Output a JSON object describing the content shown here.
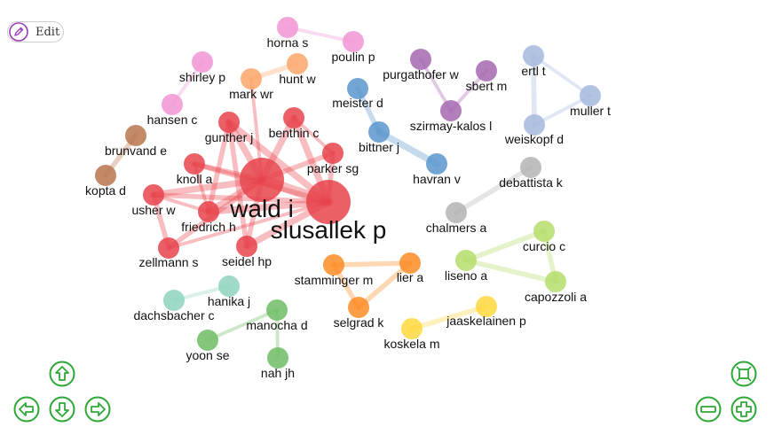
{
  "toolbar": {
    "edit_label": "Edit"
  },
  "icons": {
    "edit": "pencil-icon",
    "up": "arrow-up-icon",
    "down": "arrow-down-icon",
    "left": "arrow-left-icon",
    "right": "arrow-right-icon",
    "zoom_in": "zoom-in-icon",
    "zoom_out": "zoom-out-icon",
    "fit": "fit-to-screen-icon"
  },
  "colors": {
    "red": "#e8434b",
    "pink": "#f195d5",
    "salmon": "#fba66a",
    "brown": "#b9764e",
    "blue": "#5b97cc",
    "purple": "#a568b0",
    "lavender": "#a5b8dd",
    "gray": "#b4b4b4",
    "orange": "#fd8c24",
    "lime": "#b5dd6a",
    "yellow": "#ffd83c",
    "teal": "#8ed3bf",
    "green": "#6fbd65",
    "nav": "#2ea837"
  },
  "network": {
    "nodes": [
      {
        "id": "wald",
        "label": "wald i",
        "color": "red",
        "weight": 5
      },
      {
        "id": "slusallek",
        "label": "slusallek p",
        "color": "red",
        "weight": 5
      },
      {
        "id": "gunther",
        "label": "gunther j",
        "color": "red",
        "weight": 1
      },
      {
        "id": "benthin",
        "label": "benthin c",
        "color": "red",
        "weight": 1
      },
      {
        "id": "parker",
        "label": "parker sg",
        "color": "red",
        "weight": 1
      },
      {
        "id": "knoll",
        "label": "knoll a",
        "color": "red",
        "weight": 1
      },
      {
        "id": "usher",
        "label": "usher w",
        "color": "red",
        "weight": 1
      },
      {
        "id": "friedrich",
        "label": "friedrich h",
        "color": "red",
        "weight": 1
      },
      {
        "id": "zellmann",
        "label": "zellmann s",
        "color": "red",
        "weight": 1
      },
      {
        "id": "seidel",
        "label": "seidel hp",
        "color": "red",
        "weight": 1
      },
      {
        "id": "horna",
        "label": "horna s",
        "color": "pink",
        "weight": 1
      },
      {
        "id": "poulin",
        "label": "poulin p",
        "color": "pink",
        "weight": 1
      },
      {
        "id": "shirley",
        "label": "shirley p",
        "color": "pink",
        "weight": 1
      },
      {
        "id": "hansen",
        "label": "hansen c",
        "color": "pink",
        "weight": 1
      },
      {
        "id": "hunt",
        "label": "hunt w",
        "color": "salmon",
        "weight": 1
      },
      {
        "id": "markwr",
        "label": "mark wr",
        "color": "salmon",
        "weight": 1
      },
      {
        "id": "brunvand",
        "label": "brunvand e",
        "color": "brown",
        "weight": 1
      },
      {
        "id": "kopta",
        "label": "kopta d",
        "color": "brown",
        "weight": 1
      },
      {
        "id": "meister",
        "label": "meister d",
        "color": "blue",
        "weight": 1
      },
      {
        "id": "bittner",
        "label": "bittner j",
        "color": "blue",
        "weight": 1
      },
      {
        "id": "havran",
        "label": "havran v",
        "color": "blue",
        "weight": 1
      },
      {
        "id": "purgathofer",
        "label": "purgathofer w",
        "color": "purple",
        "weight": 1
      },
      {
        "id": "sbert",
        "label": "sbert m",
        "color": "purple",
        "weight": 1
      },
      {
        "id": "szirmay",
        "label": "szirmay-kalos l",
        "color": "purple",
        "weight": 1
      },
      {
        "id": "ertl",
        "label": "ertl t",
        "color": "lavender",
        "weight": 1
      },
      {
        "id": "muller",
        "label": "muller t",
        "color": "lavender",
        "weight": 1
      },
      {
        "id": "weiskopf",
        "label": "weiskopf d",
        "color": "lavender",
        "weight": 1
      },
      {
        "id": "debattista",
        "label": "debattista k",
        "color": "gray",
        "weight": 1
      },
      {
        "id": "chalmers",
        "label": "chalmers a",
        "color": "gray",
        "weight": 1
      },
      {
        "id": "stamminger",
        "label": "stamminger m",
        "color": "orange",
        "weight": 1
      },
      {
        "id": "lier",
        "label": "lier a",
        "color": "orange",
        "weight": 1
      },
      {
        "id": "selgrad",
        "label": "selgrad k",
        "color": "orange",
        "weight": 1
      },
      {
        "id": "curcio",
        "label": "curcio c",
        "color": "lime",
        "weight": 1
      },
      {
        "id": "liseno",
        "label": "liseno a",
        "color": "lime",
        "weight": 1
      },
      {
        "id": "capozzoli",
        "label": "capozzoli a",
        "color": "lime",
        "weight": 1
      },
      {
        "id": "jaaskelainen",
        "label": "jaaskelainen p",
        "color": "yellow",
        "weight": 1
      },
      {
        "id": "koskela",
        "label": "koskela m",
        "color": "yellow",
        "weight": 1
      },
      {
        "id": "hanika",
        "label": "hanika j",
        "color": "teal",
        "weight": 1
      },
      {
        "id": "dachsbacher",
        "label": "dachsbacher c",
        "color": "teal",
        "weight": 1
      },
      {
        "id": "manocha",
        "label": "manocha d",
        "color": "green",
        "weight": 1
      },
      {
        "id": "yoon",
        "label": "yoon se",
        "color": "green",
        "weight": 1
      },
      {
        "id": "nah",
        "label": "nah jh",
        "color": "green",
        "weight": 1
      }
    ],
    "links": [
      {
        "source": "wald",
        "target": "slusallek",
        "strength": 5
      },
      {
        "source": "wald",
        "target": "gunther",
        "strength": 3
      },
      {
        "source": "wald",
        "target": "benthin",
        "strength": 3
      },
      {
        "source": "wald",
        "target": "parker",
        "strength": 2
      },
      {
        "source": "wald",
        "target": "knoll",
        "strength": 2
      },
      {
        "source": "wald",
        "target": "usher",
        "strength": 3
      },
      {
        "source": "wald",
        "target": "friedrich",
        "strength": 3
      },
      {
        "source": "wald",
        "target": "zellmann",
        "strength": 2
      },
      {
        "source": "wald",
        "target": "seidel",
        "strength": 2
      },
      {
        "source": "wald",
        "target": "markwr",
        "strength": 1
      },
      {
        "source": "slusallek",
        "target": "gunther",
        "strength": 3
      },
      {
        "source": "slusallek",
        "target": "benthin",
        "strength": 3
      },
      {
        "source": "slusallek",
        "target": "parker",
        "strength": 2
      },
      {
        "source": "slusallek",
        "target": "knoll",
        "strength": 2
      },
      {
        "source": "slusallek",
        "target": "usher",
        "strength": 2
      },
      {
        "source": "slusallek",
        "target": "friedrich",
        "strength": 3
      },
      {
        "source": "slusallek",
        "target": "seidel",
        "strength": 3
      },
      {
        "source": "slusallek",
        "target": "zellmann",
        "strength": 1
      },
      {
        "source": "gunther",
        "target": "friedrich",
        "strength": 2
      },
      {
        "source": "gunther",
        "target": "seidel",
        "strength": 2
      },
      {
        "source": "benthin",
        "target": "parker",
        "strength": 1
      },
      {
        "source": "usher",
        "target": "zellmann",
        "strength": 2
      },
      {
        "source": "usher",
        "target": "friedrich",
        "strength": 1
      },
      {
        "source": "knoll",
        "target": "friedrich",
        "strength": 1
      },
      {
        "source": "horna",
        "target": "poulin",
        "strength": 1
      },
      {
        "source": "shirley",
        "target": "hansen",
        "strength": 1
      },
      {
        "source": "hunt",
        "target": "markwr",
        "strength": 2
      },
      {
        "source": "brunvand",
        "target": "kopta",
        "strength": 2
      },
      {
        "source": "meister",
        "target": "bittner",
        "strength": 2
      },
      {
        "source": "bittner",
        "target": "havran",
        "strength": 3
      },
      {
        "source": "purgathofer",
        "target": "szirmay",
        "strength": 1
      },
      {
        "source": "sbert",
        "target": "szirmay",
        "strength": 1
      },
      {
        "source": "ertl",
        "target": "muller",
        "strength": 1
      },
      {
        "source": "ertl",
        "target": "weiskopf",
        "strength": 2
      },
      {
        "source": "muller",
        "target": "weiskopf",
        "strength": 1
      },
      {
        "source": "debattista",
        "target": "chalmers",
        "strength": 2
      },
      {
        "source": "stamminger",
        "target": "lier",
        "strength": 2
      },
      {
        "source": "stamminger",
        "target": "selgrad",
        "strength": 2
      },
      {
        "source": "lier",
        "target": "selgrad",
        "strength": 2
      },
      {
        "source": "curcio",
        "target": "liseno",
        "strength": 2
      },
      {
        "source": "curcio",
        "target": "capozzoli",
        "strength": 2
      },
      {
        "source": "liseno",
        "target": "capozzoli",
        "strength": 2
      },
      {
        "source": "jaaskelainen",
        "target": "koskela",
        "strength": 2
      },
      {
        "source": "hanika",
        "target": "dachsbacher",
        "strength": 1
      },
      {
        "source": "manocha",
        "target": "yoon",
        "strength": 1
      },
      {
        "source": "manocha",
        "target": "nah",
        "strength": 1
      }
    ]
  }
}
